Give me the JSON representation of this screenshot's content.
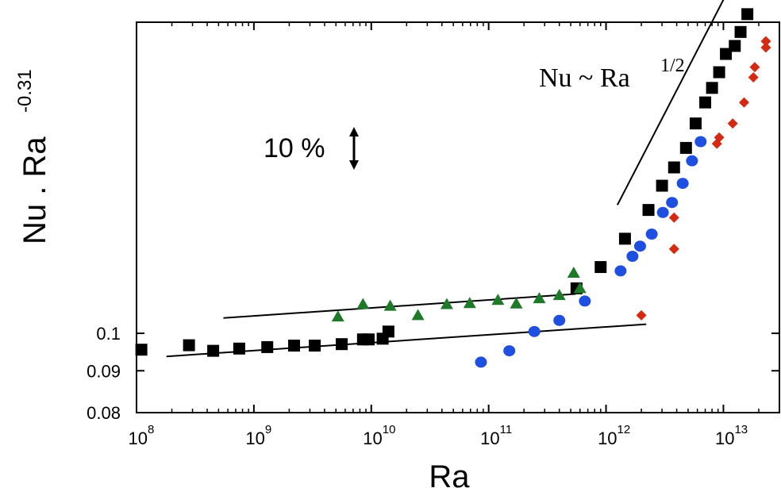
{
  "chart_data": {
    "type": "scatter",
    "title": "",
    "xlabel": "Ra",
    "ylabel": {
      "base": "Nu . Ra",
      "exponent": "-0.31"
    },
    "x_scale": "log",
    "y_scale": "log",
    "xlim": [
      100000000.0,
      30000000000000.0
    ],
    "ylim": [
      0.08,
      0.24
    ],
    "x_ticks": [
      {
        "value": 100000000.0,
        "base": "10",
        "exp": "8"
      },
      {
        "value": 1000000000.0,
        "base": "10",
        "exp": "9"
      },
      {
        "value": 10000000000.0,
        "base": "10",
        "exp": "10"
      },
      {
        "value": 100000000000.0,
        "base": "10",
        "exp": "11"
      },
      {
        "value": 1000000000000.0,
        "base": "10",
        "exp": "12"
      },
      {
        "value": 10000000000000.0,
        "base": "10",
        "exp": "13"
      }
    ],
    "y_ticks": [
      {
        "value": 0.08,
        "label": "0.08"
      },
      {
        "value": 0.09,
        "label": "0.09"
      },
      {
        "value": 0.1,
        "label": "0.1"
      }
    ],
    "grid": false,
    "annotations": {
      "scaling_label": {
        "text": "Nu ~ Ra",
        "exponent": "1/2"
      },
      "ten_percent": "10 %"
    },
    "series": [
      {
        "marker": "square",
        "color": "#000000",
        "points": [
          [
            110000000.0,
            0.0955
          ],
          [
            280000000.0,
            0.0967
          ],
          [
            450000000.0,
            0.0952
          ],
          [
            750000000.0,
            0.0958
          ],
          [
            1300000000.0,
            0.0962
          ],
          [
            2200000000.0,
            0.0966
          ],
          [
            3300000000.0,
            0.0966
          ],
          [
            5600000000.0,
            0.097
          ],
          [
            8500000000.0,
            0.0983
          ],
          [
            9500000000.0,
            0.0983
          ],
          [
            12500000000.0,
            0.0985
          ],
          [
            14000000000.0,
            0.1005
          ],
          [
            560000000000.0,
            0.1135
          ],
          [
            900000000000.0,
            0.1205
          ],
          [
            1450000000000.0,
            0.1305
          ],
          [
            2300000000000.0,
            0.1415
          ],
          [
            3000000000000.0,
            0.1515
          ],
          [
            3800000000000.0,
            0.1595
          ],
          [
            4800000000000.0,
            0.1685
          ],
          [
            5800000000000.0,
            0.1805
          ],
          [
            7000000000000.0,
            0.1915
          ],
          [
            8000000000000.0,
            0.1995
          ],
          [
            9200000000000.0,
            0.2085
          ],
          [
            10500000000000.0,
            0.2195
          ],
          [
            12500000000000.0,
            0.2245
          ],
          [
            14000000000000.0,
            0.2335
          ],
          [
            16000000000000.0,
            0.2455
          ]
        ]
      },
      {
        "marker": "circle",
        "color": "#1f4fe0",
        "points": [
          [
            86000000000.0,
            0.0922
          ],
          [
            150000000000.0,
            0.0952
          ],
          [
            245000000000.0,
            0.1005
          ],
          [
            400000000000.0,
            0.1037
          ],
          [
            660000000000.0,
            0.1095
          ],
          [
            1330000000000.0,
            0.1192
          ],
          [
            1680000000000.0,
            0.1242
          ],
          [
            1950000000000.0,
            0.1278
          ],
          [
            2450000000000.0,
            0.1322
          ],
          [
            3050000000000.0,
            0.1405
          ],
          [
            3650000000000.0,
            0.1445
          ],
          [
            4500000000000.0,
            0.1525
          ],
          [
            5400000000000.0,
            0.1625
          ],
          [
            6400000000000.0,
            0.1715
          ]
        ]
      },
      {
        "marker": "triangle",
        "color": "#1e7a28",
        "points": [
          [
            5200000000.0,
            0.1048
          ],
          [
            8500000000.0,
            0.1085
          ],
          [
            14500000000.0,
            0.108
          ],
          [
            25000000000.0,
            0.1052
          ],
          [
            44000000000.0,
            0.1085
          ],
          [
            69000000000.0,
            0.1088
          ],
          [
            120000000000.0,
            0.1098
          ],
          [
            172000000000.0,
            0.1087
          ],
          [
            270000000000.0,
            0.1103
          ],
          [
            400000000000.0,
            0.1113
          ],
          [
            530000000000.0,
            0.1185
          ],
          [
            600000000000.0,
            0.1135
          ]
        ]
      },
      {
        "marker": "diamond",
        "color": "#d42a12",
        "points": [
          [
            2000000000000.0,
            0.1052
          ],
          [
            3800000000000.0,
            0.1268
          ],
          [
            3800000000000.0,
            0.1385
          ],
          [
            8800000000000.0,
            0.1705
          ],
          [
            9200000000000.0,
            0.1735
          ],
          [
            12000000000000.0,
            0.1805
          ],
          [
            15000000000000.0,
            0.1915
          ],
          [
            18000000000000.0,
            0.2055
          ],
          [
            18500000000000.0,
            0.2115
          ],
          [
            23000000000000.0,
            0.2235
          ],
          [
            23000000000000.0,
            0.2275
          ]
        ]
      }
    ],
    "fit_lines": [
      {
        "points": [
          [
            180000000.0,
            0.0937
          ],
          [
            2200000000000.0,
            0.1026
          ]
        ]
      },
      {
        "points": [
          [
            550000000.0,
            0.1044
          ],
          [
            550000000000.0,
            0.1117
          ]
        ]
      },
      {
        "points": [
          [
            1250000000000.0,
            0.1435
          ],
          [
            11000000000000.0,
            0.2625
          ]
        ]
      }
    ]
  }
}
